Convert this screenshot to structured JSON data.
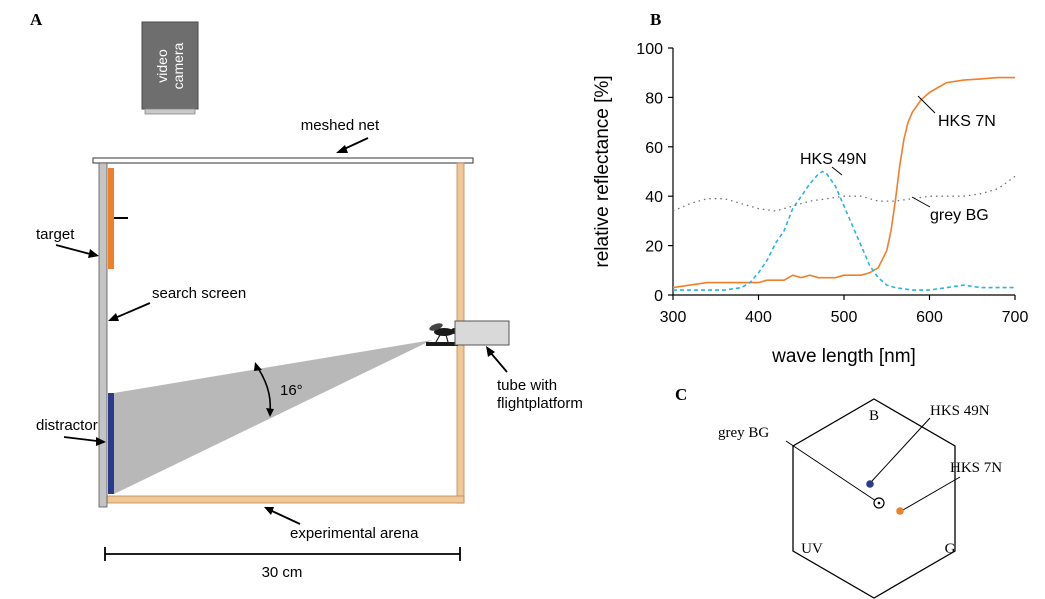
{
  "panels": {
    "a": "A",
    "b": "B",
    "c": "C"
  },
  "setup": {
    "camera_line1": "video",
    "camera_line2": "camera",
    "meshed_net": "meshed net",
    "target": "target",
    "search_screen": "search screen",
    "angle": "16°",
    "tube_line1": "tube with",
    "tube_line2": "flightplatform",
    "distractor": "distractor",
    "arena": "experimental arena",
    "scale": "30 cm"
  },
  "chart_data": {
    "type": "line",
    "xlabel": "wave length [nm]",
    "ylabel": "relative reflectance [%]",
    "xlim": [
      300,
      700
    ],
    "ylim": [
      0,
      100
    ],
    "xticks": [
      "300",
      "400",
      "500",
      "600",
      "700"
    ],
    "yticks": [
      "0",
      "20",
      "40",
      "60",
      "80",
      "100"
    ],
    "series": [
      {
        "name": "HKS 7N",
        "color": "#f07f2a",
        "style": "solid",
        "x": [
          300,
          320,
          340,
          360,
          380,
          400,
          410,
          420,
          430,
          440,
          450,
          460,
          470,
          480,
          490,
          500,
          510,
          520,
          530,
          540,
          550,
          555,
          560,
          565,
          570,
          575,
          580,
          590,
          600,
          610,
          620,
          640,
          660,
          680,
          700
        ],
        "y": [
          3,
          4,
          5,
          5,
          5,
          5,
          6,
          6,
          6,
          8,
          7,
          8,
          7,
          7,
          7,
          8,
          8,
          8,
          9,
          11,
          18,
          26,
          38,
          52,
          63,
          70,
          74,
          79,
          82,
          84,
          86,
          87,
          87.5,
          88,
          88
        ]
      },
      {
        "name": "HKS 49N",
        "color": "#2ab4e0",
        "style": "dashed",
        "x": [
          300,
          320,
          340,
          360,
          380,
          390,
          400,
          410,
          420,
          430,
          440,
          450,
          460,
          470,
          475,
          480,
          490,
          500,
          510,
          520,
          530,
          540,
          550,
          560,
          580,
          600,
          620,
          640,
          660,
          680,
          700
        ],
        "y": [
          2,
          2,
          2,
          2,
          3,
          5,
          9,
          14,
          21,
          26,
          35,
          40,
          45,
          49,
          50,
          49,
          44,
          36,
          28,
          20,
          12,
          7,
          4,
          3,
          2,
          2,
          3,
          4,
          3,
          3,
          3
        ]
      },
      {
        "name": "grey BG",
        "color": "#707070",
        "style": "dotted",
        "x": [
          300,
          320,
          340,
          360,
          380,
          400,
          420,
          440,
          460,
          480,
          500,
          520,
          540,
          560,
          580,
          600,
          620,
          640,
          660,
          680,
          700
        ],
        "y": [
          34,
          37,
          39,
          39,
          37,
          35,
          34,
          36,
          38,
          39,
          40,
          40,
          38,
          38,
          39,
          40,
          40,
          40,
          41,
          43,
          48
        ]
      }
    ],
    "labels": {
      "hks7n": "HKS 7N",
      "hks49n": "HKS 49N",
      "greybg": "grey BG"
    }
  },
  "color_space": {
    "vertices": [
      "B",
      "G",
      "UV"
    ],
    "points": [
      {
        "name": "HKS 49N",
        "color": "#2a3b8c"
      },
      {
        "name": "HKS 7N",
        "color": "#f07f2a"
      },
      {
        "name": "grey BG",
        "color": "#ffffff"
      }
    ]
  }
}
